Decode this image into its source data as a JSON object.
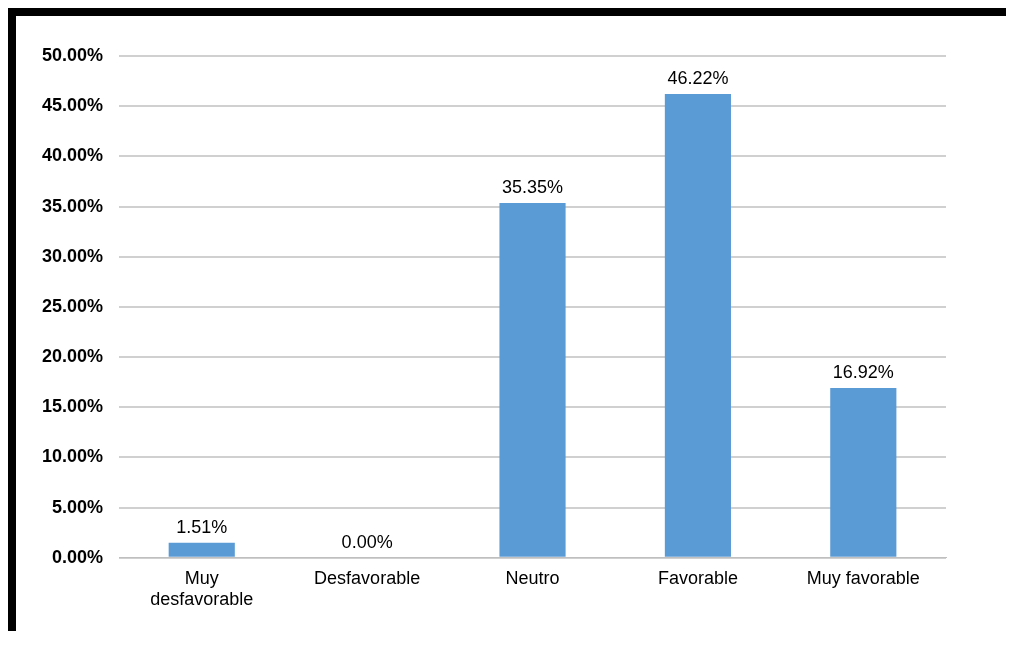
{
  "chart_data": {
    "type": "bar",
    "categories": [
      "Muy desfavorable",
      "Desfavorable",
      "Neutro",
      "Favorable",
      "Muy favorable"
    ],
    "values": [
      1.51,
      0,
      35.35,
      46.22,
      16.92
    ],
    "colors": [
      "#5b9bd5",
      "#1f2d3d",
      "#5b9bd5",
      "#5b9bd5",
      "#5b9bd5"
    ],
    "value_labels": [
      "1.51%",
      "0.00%",
      "35.35%",
      "46.22%",
      "16.92%"
    ],
    "ylim": [
      0,
      50
    ],
    "yticks": [
      {
        "value": 0,
        "label": "0.00%"
      },
      {
        "value": 5,
        "label": "5.00%"
      },
      {
        "value": 10,
        "label": "10.00%"
      },
      {
        "value": 15,
        "label": "15.00%"
      },
      {
        "value": 20,
        "label": "20.00%"
      },
      {
        "value": 25,
        "label": "25.00%"
      },
      {
        "value": 30,
        "label": "30.00%"
      },
      {
        "value": 35,
        "label": "35.00%"
      },
      {
        "value": 40,
        "label": "40.00%"
      },
      {
        "value": 45,
        "label": "45.00%"
      },
      {
        "value": 50,
        "label": "50.00%"
      }
    ],
    "grid": "y"
  }
}
